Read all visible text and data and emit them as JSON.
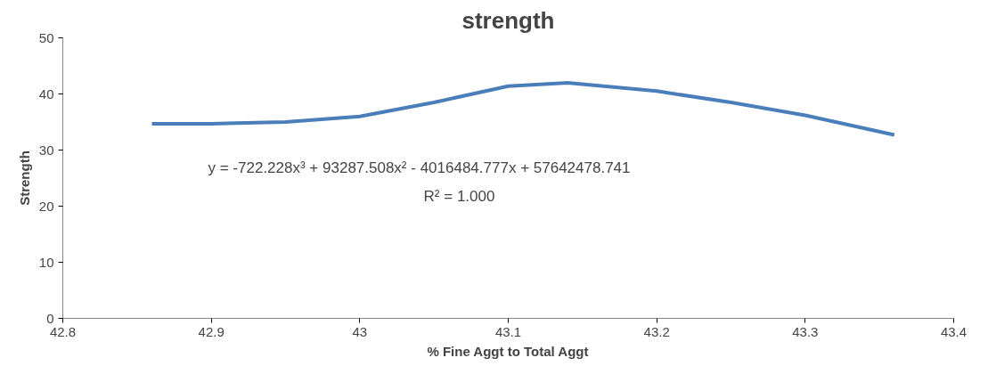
{
  "chart_data": {
    "type": "line",
    "title": "strength",
    "xlabel": "% Fine Aggt to Total Aggt",
    "ylabel": "Strength",
    "x": [
      42.86,
      42.9,
      42.95,
      43.0,
      43.05,
      43.1,
      43.14,
      43.2,
      43.25,
      43.3,
      43.36
    ],
    "series": [
      {
        "color": "#4a7ebb",
        "values": [
          34.7,
          34.7,
          35.0,
          36.0,
          38.5,
          41.4,
          42.0,
          40.5,
          38.5,
          36.2,
          32.7
        ]
      }
    ],
    "xlim": [
      42.8,
      43.4
    ],
    "xticks": [
      42.8,
      42.9,
      {
        "value": 43.0,
        "label": "43"
      },
      43.1,
      43.2,
      43.3,
      43.4
    ],
    "ylim": [
      0,
      50
    ],
    "yticks": [
      0,
      10,
      20,
      30,
      40,
      50
    ],
    "annotations": [
      "y = -722.228x³ + 93287.508x² - 4016484.777x + 57642478.741",
      "R² = 1.000"
    ],
    "grid": false,
    "marker": "none",
    "line_style": "solid"
  }
}
